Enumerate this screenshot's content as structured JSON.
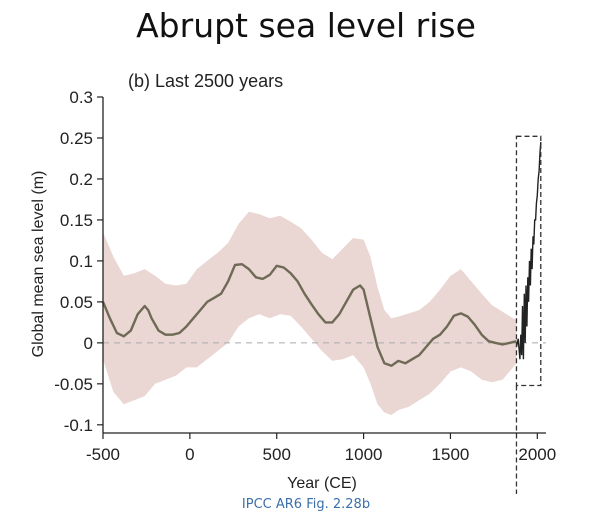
{
  "slide": {
    "title": "Abrupt sea level rise",
    "caption": "IPCC AR6 Fig. 2.28b"
  },
  "chart_data": {
    "type": "line",
    "title": "(b)  Last 2500 years",
    "xlabel": "Year (CE)",
    "ylabel": "Global mean sea level (m)",
    "xlim": [
      -500,
      2050
    ],
    "ylim": [
      -0.11,
      0.3
    ],
    "xticks": [
      -500,
      0,
      500,
      1000,
      1500,
      2000
    ],
    "xtick_labels": [
      "-500",
      "0",
      "500",
      "1000",
      "1500",
      "2000"
    ],
    "yticks": [
      -0.1,
      -0.05,
      0,
      0.05,
      0.1,
      0.15,
      0.2,
      0.25,
      0.3
    ],
    "ytick_labels": [
      "-0.1",
      "-0.05",
      "0",
      "0.05",
      "0.1",
      "0.15",
      "0.2",
      "0.25",
      "0.3"
    ],
    "grid": false,
    "colors": {
      "line": "#6f6a56",
      "band": "#ead7d3",
      "observed": "#222222",
      "zero_line": "#aaaaaa",
      "box": "#333333"
    },
    "series": [
      {
        "kind": "central_estimate",
        "x": [
          -500,
          -460,
          -420,
          -380,
          -340,
          -300,
          -260,
          -240,
          -220,
          -180,
          -140,
          -100,
          -60,
          -20,
          20,
          60,
          100,
          140,
          180,
          220,
          260,
          300,
          340,
          380,
          420,
          460,
          500,
          540,
          580,
          620,
          660,
          700,
          740,
          780,
          820,
          860,
          900,
          940,
          980,
          1000,
          1040,
          1080,
          1120,
          1160,
          1200,
          1240,
          1280,
          1320,
          1360,
          1400,
          1440,
          1480,
          1520,
          1560,
          1600,
          1640,
          1680,
          1720,
          1760,
          1800,
          1840,
          1880
        ],
        "y": [
          0.05,
          0.03,
          0.012,
          0.008,
          0.015,
          0.035,
          0.045,
          0.04,
          0.03,
          0.015,
          0.01,
          0.01,
          0.012,
          0.02,
          0.03,
          0.04,
          0.05,
          0.055,
          0.06,
          0.075,
          0.095,
          0.096,
          0.09,
          0.08,
          0.078,
          0.083,
          0.094,
          0.092,
          0.085,
          0.075,
          0.06,
          0.047,
          0.035,
          0.025,
          0.025,
          0.035,
          0.05,
          0.065,
          0.07,
          0.065,
          0.03,
          -0.005,
          -0.025,
          -0.028,
          -0.022,
          -0.025,
          -0.02,
          -0.015,
          -0.005,
          0.005,
          0.01,
          0.02,
          0.033,
          0.036,
          0.032,
          0.022,
          0.01,
          0.002,
          0.0,
          -0.002,
          0.0,
          0.002
        ]
      },
      {
        "kind": "uncertainty_band",
        "x": [
          -500,
          -440,
          -380,
          -320,
          -260,
          -200,
          -140,
          -80,
          -20,
          40,
          100,
          160,
          220,
          280,
          340,
          400,
          460,
          520,
          580,
          640,
          700,
          760,
          820,
          880,
          940,
          1000,
          1040,
          1080,
          1120,
          1160,
          1200,
          1260,
          1320,
          1380,
          1440,
          1500,
          1560,
          1620,
          1680,
          1740,
          1800,
          1860,
          1880
        ],
        "upper": [
          0.135,
          0.105,
          0.082,
          0.085,
          0.09,
          0.082,
          0.072,
          0.07,
          0.072,
          0.09,
          0.1,
          0.11,
          0.122,
          0.145,
          0.16,
          0.157,
          0.152,
          0.155,
          0.148,
          0.14,
          0.126,
          0.11,
          0.102,
          0.115,
          0.128,
          0.126,
          0.105,
          0.068,
          0.04,
          0.03,
          0.032,
          0.036,
          0.04,
          0.05,
          0.065,
          0.082,
          0.09,
          0.075,
          0.06,
          0.046,
          0.038,
          0.03,
          0.028
        ],
        "lower": [
          -0.02,
          -0.06,
          -0.075,
          -0.07,
          -0.065,
          -0.05,
          -0.045,
          -0.04,
          -0.03,
          -0.03,
          -0.02,
          -0.01,
          0.0,
          0.02,
          0.03,
          0.035,
          0.03,
          0.035,
          0.033,
          0.02,
          0.005,
          -0.01,
          -0.022,
          -0.02,
          -0.015,
          -0.03,
          -0.05,
          -0.075,
          -0.085,
          -0.088,
          -0.082,
          -0.078,
          -0.07,
          -0.062,
          -0.05,
          -0.035,
          -0.03,
          -0.035,
          -0.045,
          -0.048,
          -0.045,
          -0.03,
          -0.025
        ]
      },
      {
        "kind": "observed",
        "x": [
          1880,
          1890,
          1900,
          1905,
          1910,
          1915,
          1920,
          1925,
          1930,
          1935,
          1940,
          1945,
          1950,
          1955,
          1960,
          1965,
          1970,
          1975,
          1980,
          1985,
          1990,
          1995,
          2000,
          2005,
          2010,
          2015,
          2020
        ],
        "y": [
          -0.005,
          0.005,
          -0.02,
          0.01,
          -0.015,
          0.045,
          -0.02,
          0.06,
          0.0,
          0.07,
          0.02,
          0.08,
          0.05,
          0.1,
          0.07,
          0.115,
          0.09,
          0.13,
          0.12,
          0.15,
          0.15,
          0.17,
          0.18,
          0.2,
          0.21,
          0.23,
          0.245
        ]
      }
    ],
    "annotations": {
      "zero_line": 0,
      "highlight_box": {
        "x": [
          1880,
          2020
        ],
        "y": [
          -0.052,
          0.252
        ]
      },
      "vertical_marker_x": 1880
    }
  }
}
